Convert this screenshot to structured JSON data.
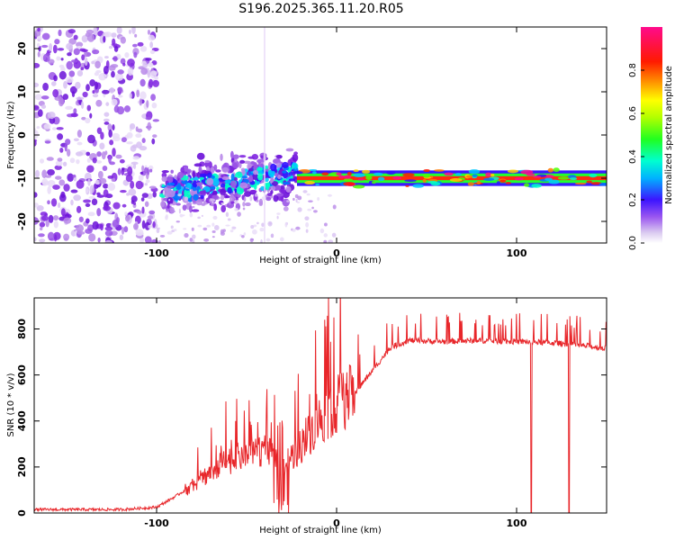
{
  "figure_title": "S196.2025.365.11.20.R05",
  "chart_data": [
    {
      "type": "heatmap",
      "title": "S196.2025.365.11.20.R05",
      "xlabel": "Height of straight line (km)",
      "ylabel": "Frequency (Hz)",
      "xlim": [
        -168,
        150
      ],
      "ylim": [
        -25,
        25
      ],
      "xticks": [
        "-100",
        "0",
        "100"
      ],
      "yticks": [
        "20",
        "10",
        "0",
        "-10",
        "-20"
      ],
      "colorbar": {
        "label": "Normalized spectral amplitude",
        "range": [
          0,
          1
        ],
        "ticks": [
          "0.0",
          "0.2",
          "0.4",
          "0.6",
          "0.8"
        ]
      },
      "features": {
        "noise_region_km": [
          -168,
          -100
        ],
        "drift_region_km": [
          -97,
          -22
        ],
        "drift_center_hz": [
          -13,
          -9
        ],
        "stable_tone_region_km": [
          -22,
          150
        ],
        "stable_tone_hz": -10
      }
    },
    {
      "type": "line",
      "xlabel": "Height of straight line (km)",
      "ylabel": "SNR (10 * v/v)",
      "xlim": [
        -168,
        150
      ],
      "ylim": [
        0,
        935
      ],
      "xticks": [
        "-100",
        "0",
        "100"
      ],
      "yticks": [
        "0",
        "200",
        "400",
        "600",
        "800"
      ],
      "series": [
        {
          "name": "SNR",
          "color": "#e8262a",
          "envelope": {
            "x": [
              -168,
              -120,
              -100,
              -90,
              -80,
              -70,
              -60,
              -50,
              -40,
              -30,
              -20,
              -10,
              0,
              10,
              20,
              30,
              40,
              60,
              80,
              100,
              120,
              140,
              150
            ],
            "y": [
              15,
              15,
              25,
              70,
              120,
              180,
              230,
              250,
              280,
              200,
              290,
              400,
              470,
              520,
              620,
              720,
              750,
              745,
              750,
              745,
              740,
              725,
              715
            ]
          },
          "dropouts_km": [
            108,
            129
          ]
        }
      ]
    }
  ]
}
